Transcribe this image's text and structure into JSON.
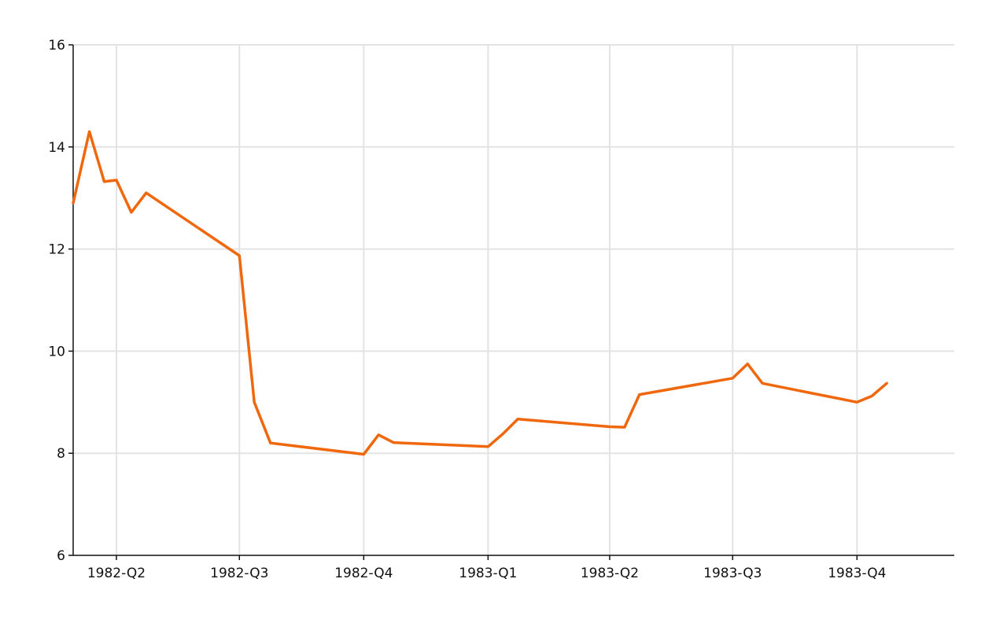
{
  "chart_data": {
    "type": "line",
    "title": "",
    "xlabel": "",
    "ylabel": "",
    "ylim": [
      6,
      16
    ],
    "y_ticks": [
      6,
      8,
      10,
      12,
      14,
      16
    ],
    "x_tick_labels": [
      "1982-Q2",
      "1982-Q3",
      "1982-Q4",
      "1983-Q1",
      "1983-Q2",
      "1983-Q3",
      "1983-Q4"
    ],
    "grid": true,
    "series": [
      {
        "color": "#f0680e",
        "x": [
          "1982-02-28",
          "1982-03-12",
          "1982-03-23",
          "1982-04-01",
          "1982-04-12",
          "1982-04-23",
          "1982-07-01",
          "1982-07-12",
          "1982-07-24",
          "1982-10-01",
          "1982-10-12",
          "1982-10-23",
          "1983-01-01",
          "1983-01-12",
          "1983-01-23",
          "1983-04-01",
          "1983-04-12",
          "1983-04-23",
          "1983-07-01",
          "1983-07-12",
          "1983-07-23",
          "1983-10-01",
          "1983-10-12",
          "1983-10-23"
        ],
        "values": [
          12.9,
          14.3,
          13.32,
          13.35,
          12.72,
          13.1,
          11.87,
          9.0,
          8.2,
          7.98,
          8.36,
          8.21,
          8.13,
          8.38,
          8.67,
          8.52,
          8.51,
          9.15,
          9.47,
          9.75,
          9.37,
          9.0,
          9.12,
          9.37
        ]
      }
    ]
  }
}
